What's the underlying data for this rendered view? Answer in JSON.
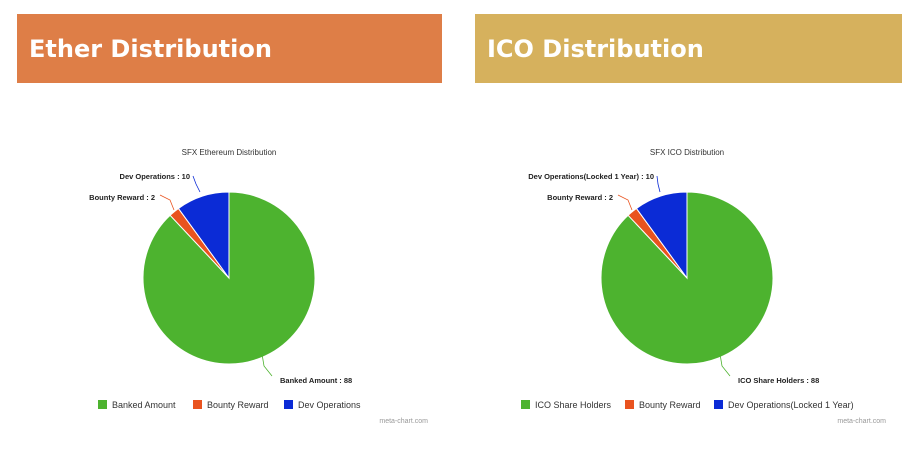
{
  "colors": {
    "left_banner": "#de7e47",
    "right_banner": "#d6b15d",
    "green": "#4db32f",
    "orange": "#e9531f",
    "blue": "#0b2bd6"
  },
  "banners": {
    "left_title": "Ether Distribution",
    "right_title": "ICO Distribution"
  },
  "chart_data": [
    {
      "type": "pie",
      "title": "SFX Ethereum Distribution",
      "slices": [
        {
          "name": "Banked Amount",
          "value": 88,
          "label": "Banked Amount : 88",
          "color": "#4db32f"
        },
        {
          "name": "Bounty Reward",
          "value": 2,
          "label": "Bounty Reward : 2",
          "color": "#e9531f"
        },
        {
          "name": "Dev Operations",
          "value": 10,
          "label": "Dev Operations : 10",
          "color": "#0b2bd6"
        }
      ],
      "legend_placement": "bottom",
      "credit": "meta-chart.com"
    },
    {
      "type": "pie",
      "title": "SFX ICO Distribution",
      "slices": [
        {
          "name": "ICO Share Holders",
          "value": 88,
          "label": "ICO Share Holders : 88",
          "color": "#4db32f"
        },
        {
          "name": "Bounty Reward",
          "value": 2,
          "label": "Bounty Reward : 2",
          "color": "#e9531f"
        },
        {
          "name": "Dev Operations(Locked 1 Year)",
          "value": 10,
          "label": "Dev Operations(Locked 1 Year) : 10",
          "color": "#0b2bd6"
        }
      ],
      "legend_placement": "bottom",
      "credit": "meta-chart.com"
    }
  ]
}
